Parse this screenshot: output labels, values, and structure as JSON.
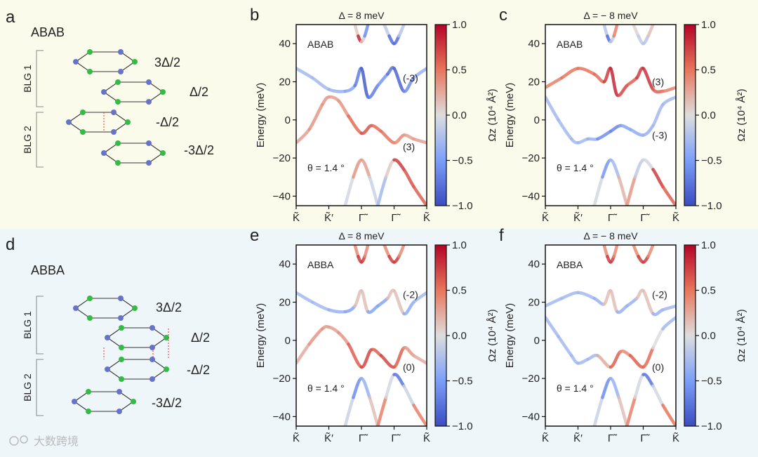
{
  "panels": {
    "a": {
      "letter": "a",
      "stack": "ABAB",
      "layers": [
        "3Δ/2",
        "Δ/2",
        "-Δ/2",
        "-3Δ/2"
      ],
      "blg1": "BLG 1",
      "blg2": "BLG 2"
    },
    "d": {
      "letter": "d",
      "stack": "ABBA",
      "layers": [
        "3Δ/2",
        "Δ/2",
        "-Δ/2",
        "-3Δ/2"
      ],
      "blg1": "BLG 1",
      "blg2": "BLG 2"
    }
  },
  "watermark": "大数跨境",
  "colors": {
    "blue": "#3b4cc0",
    "red": "#b40426",
    "mid": "#dddddd",
    "green": "#33bb44",
    "node_blue": "#6673c8"
  },
  "chart_data": [
    {
      "id": "b",
      "type": "line",
      "letter": "b",
      "title": "Δ = 8 meV",
      "stack": "ABAB",
      "theta": "θ = 1.4 °",
      "ylabel": "Energy (meV)",
      "ylim": [
        -45,
        50
      ],
      "yticks": [
        "40",
        "20",
        "0",
        "−20",
        "−40"
      ],
      "xticks": [
        "K̃",
        "K̃′",
        "Γ̃",
        "Γ̃",
        "K̃"
      ],
      "chern": [
        {
          "text": "(-3)",
          "e": 22
        },
        {
          "text": "(3)",
          "e": -14
        }
      ],
      "colorbar": {
        "label": "Ωz (10⁴ Å²)",
        "ticks": [
          "1.0",
          "0.5",
          "0.0",
          "−0.5",
          "−1.0"
        ],
        "range": [
          -1,
          1
        ]
      },
      "bands": [
        {
          "name": "upper flat",
          "x": [
            0,
            0.5,
            1,
            1.5,
            1.8,
            2,
            2.2,
            2.5,
            2.8,
            3,
            3.3,
            3.6,
            4
          ],
          "y": [
            27,
            22,
            16,
            15,
            18,
            27,
            12,
            18,
            24,
            27,
            15,
            22,
            27
          ],
          "c": [
            -0.3,
            -0.3,
            -0.3,
            -0.4,
            -0.5,
            -0.9,
            -0.9,
            -0.5,
            -0.6,
            -0.9,
            -0.8,
            -0.4,
            -0.3
          ]
        },
        {
          "name": "lower flat",
          "x": [
            0,
            0.4,
            0.8,
            1,
            1.3,
            1.6,
            2,
            2.3,
            2.6,
            3,
            3.3,
            3.6,
            4
          ],
          "y": [
            -12,
            -5,
            8,
            12,
            10,
            2,
            -7,
            -3,
            -6,
            -12,
            -8,
            -10,
            -12
          ],
          "c": [
            0.3,
            0.3,
            0.4,
            0.3,
            0.3,
            0.4,
            0.7,
            0.6,
            0.5,
            0.5,
            0.3,
            0.3,
            0.3
          ]
        },
        {
          "name": "remote up 1",
          "x": [
            1.8,
            1.9,
            2,
            2.1,
            2.2
          ],
          "y": [
            50,
            44,
            41,
            44,
            50
          ],
          "c": [
            -0.6,
            0.8,
            0.9,
            -0.7,
            -0.5
          ]
        },
        {
          "name": "remote up 2",
          "x": [
            2.7,
            2.85,
            3,
            3.15,
            3.3
          ],
          "y": [
            50,
            44,
            40,
            44,
            50
          ],
          "c": [
            0.3,
            -0.6,
            -1,
            -0.6,
            0.2
          ]
        },
        {
          "name": "remote down 1",
          "x": [
            1.5,
            1.75,
            2,
            2.25,
            2.5
          ],
          "y": [
            -45,
            -30,
            -21,
            -30,
            -45
          ],
          "c": [
            0.1,
            -0.2,
            0.9,
            -0.3,
            0.1
          ]
        },
        {
          "name": "remote down 2",
          "x": [
            2.5,
            2.75,
            3,
            3.3,
            3.6,
            4
          ],
          "y": [
            -45,
            -30,
            -21,
            -26,
            -35,
            -45
          ],
          "c": [
            0.1,
            -0.7,
            0.9,
            0.6,
            0.7,
            0.5
          ]
        }
      ]
    },
    {
      "id": "c",
      "type": "line",
      "letter": "c",
      "title": "Δ = − 8 meV",
      "stack": "ABAB",
      "theta": "θ = 1.4 °",
      "ylabel": "Energy (meV)",
      "ylim": [
        -45,
        50
      ],
      "yticks": [
        "40",
        "20",
        "0",
        "−20",
        "−40"
      ],
      "xticks": [
        "K̃",
        "K̃′",
        "Γ̃",
        "Γ̃",
        "K̃"
      ],
      "chern": [
        {
          "text": "(3)",
          "e": 20
        },
        {
          "text": "(-3)",
          "e": -8
        }
      ],
      "colorbar": {
        "label": "Ωz (10⁴ Å²)",
        "ticks": [
          "1.0",
          "0.5",
          "0.0",
          "−0.5",
          "−1.0"
        ],
        "range": [
          -1,
          1
        ]
      },
      "bands": [
        {
          "name": "upper flat",
          "x": [
            0,
            0.5,
            1,
            1.5,
            1.8,
            2,
            2.2,
            2.5,
            2.8,
            3,
            3.3,
            3.6,
            4
          ],
          "y": [
            17,
            22,
            27,
            24,
            20,
            27,
            13,
            18,
            22,
            27,
            16,
            15,
            17
          ],
          "c": [
            0.4,
            0.5,
            0.5,
            0.5,
            0.6,
            0.9,
            0.8,
            0.6,
            0.6,
            0.9,
            0.7,
            0.5,
            0.4
          ]
        },
        {
          "name": "lower flat",
          "x": [
            0,
            0.4,
            0.8,
            1,
            1.3,
            1.6,
            2,
            2.3,
            2.6,
            3,
            3.3,
            3.6,
            4
          ],
          "y": [
            12,
            0,
            -10,
            -12,
            -10,
            -10,
            -6,
            -3,
            -5,
            -8,
            -3,
            8,
            12
          ],
          "c": [
            -0.3,
            -0.3,
            -0.3,
            -0.3,
            -0.3,
            -0.4,
            -0.8,
            -0.5,
            -0.4,
            -0.4,
            -0.3,
            -0.3,
            -0.3
          ]
        },
        {
          "name": "remote up 1",
          "x": [
            1.8,
            1.9,
            2,
            2.1,
            2.2
          ],
          "y": [
            50,
            44,
            41,
            44,
            50
          ],
          "c": [
            0.3,
            -0.7,
            -0.9,
            0.6,
            0.3
          ]
        },
        {
          "name": "remote up 2",
          "x": [
            2.7,
            2.85,
            3,
            3.15,
            3.3
          ],
          "y": [
            50,
            44,
            40,
            44,
            50
          ],
          "c": [
            -0.5,
            0.6,
            -0.9,
            0.5,
            -0.2
          ]
        },
        {
          "name": "remote down 1",
          "x": [
            1.5,
            1.75,
            2,
            2.25,
            2.5
          ],
          "y": [
            -45,
            -30,
            -21,
            -30,
            -45
          ],
          "c": [
            0.1,
            -0.2,
            -0.9,
            0.3,
            0.1
          ]
        },
        {
          "name": "remote down 2",
          "x": [
            2.5,
            2.75,
            3,
            3.3,
            3.6,
            4
          ],
          "y": [
            -45,
            -30,
            -21,
            -26,
            -35,
            -45
          ],
          "c": [
            0.1,
            0.6,
            -0.9,
            0.8,
            0.7,
            0.5
          ]
        }
      ]
    },
    {
      "id": "e",
      "type": "line",
      "letter": "e",
      "title": "Δ = 8 meV",
      "stack": "ABBA",
      "theta": "θ = 1.4 °",
      "ylabel": "Energy (meV)",
      "ylim": [
        -45,
        50
      ],
      "yticks": [
        "40",
        "20",
        "0",
        "−20",
        "−40"
      ],
      "xticks": [
        "K̃",
        "K̃′",
        "Γ̃",
        "Γ̃",
        "K̃"
      ],
      "chern": [
        {
          "text": "(-2)",
          "e": 24
        },
        {
          "text": "(0)",
          "e": -14
        }
      ],
      "colorbar": {
        "label": "Ωz (10⁴ Å²)",
        "ticks": [
          "1.0",
          "0.5",
          "0.0",
          "−0.5",
          "−1.0"
        ],
        "range": [
          -1,
          1
        ]
      },
      "bands": [
        {
          "name": "upper flat",
          "x": [
            0,
            0.5,
            1,
            1.5,
            1.8,
            2,
            2.2,
            2.5,
            2.8,
            3,
            3.3,
            3.6,
            4
          ],
          "y": [
            25,
            20,
            16,
            15,
            18,
            26,
            15,
            18,
            22,
            26,
            14,
            20,
            25
          ],
          "c": [
            -0.3,
            -0.3,
            -0.3,
            -0.4,
            -0.5,
            0.8,
            -0.5,
            -0.4,
            -0.5,
            0.8,
            -0.5,
            -0.3,
            -0.3
          ]
        },
        {
          "name": "lower flat",
          "x": [
            0,
            0.4,
            0.8,
            1,
            1.3,
            1.6,
            2,
            2.3,
            2.6,
            3,
            3.3,
            3.6,
            4
          ],
          "y": [
            -12,
            -2,
            6,
            7,
            4,
            -2,
            -14,
            -5,
            -8,
            -14,
            -4,
            -8,
            -12
          ],
          "c": [
            0.2,
            0.3,
            0.4,
            0.3,
            0.3,
            0.4,
            0.8,
            0.6,
            0.6,
            0.8,
            0.4,
            0.3,
            0.2
          ]
        },
        {
          "name": "remote up 1",
          "x": [
            1.8,
            1.9,
            2,
            2.1,
            2.2
          ],
          "y": [
            50,
            44,
            41,
            44,
            50
          ],
          "c": [
            0.2,
            0.6,
            0.9,
            0.6,
            0.2
          ]
        },
        {
          "name": "remote up 2",
          "x": [
            2.7,
            2.85,
            3,
            3.15,
            3.3
          ],
          "y": [
            50,
            44,
            41,
            44,
            50
          ],
          "c": [
            0.2,
            0.6,
            0.9,
            0.6,
            0.2
          ]
        },
        {
          "name": "remote down 1",
          "x": [
            1.5,
            1.75,
            2,
            2.25,
            2.5
          ],
          "y": [
            -45,
            -30,
            -20,
            -30,
            -45
          ],
          "c": [
            0.1,
            -0.3,
            -0.9,
            0.2,
            0.1
          ]
        },
        {
          "name": "remote down 2",
          "x": [
            2.5,
            2.75,
            3,
            3.3,
            3.6,
            4
          ],
          "y": [
            -45,
            -30,
            -18,
            -24,
            -34,
            -45
          ],
          "c": [
            0.1,
            0.8,
            -0.9,
            -0.6,
            0.4,
            0.5
          ]
        }
      ]
    },
    {
      "id": "f",
      "type": "line",
      "letter": "f",
      "title": "Δ = − 8 meV",
      "stack": "ABBA",
      "theta": "θ = 1.4 °",
      "ylabel": "Energy (meV)",
      "ylim": [
        -45,
        50
      ],
      "yticks": [
        "40",
        "20",
        "0",
        "−20",
        "−40"
      ],
      "xticks": [
        "K̃",
        "K̃′",
        "Γ̃",
        "Γ̃",
        "K̃"
      ],
      "chern": [
        {
          "text": "(-2)",
          "e": 24
        },
        {
          "text": "(0)",
          "e": -14
        }
      ],
      "colorbar": {
        "label": "Ωz (10⁴ Å²)",
        "ticks": [
          "1.0",
          "0.5",
          "0.0",
          "−0.5",
          "−1.0"
        ],
        "range": [
          -1,
          1
        ]
      },
      "bands": [
        {
          "name": "upper flat",
          "x": [
            0,
            0.5,
            1,
            1.5,
            1.8,
            2,
            2.2,
            2.5,
            2.8,
            3,
            3.3,
            3.6,
            4
          ],
          "y": [
            18,
            22,
            25,
            22,
            19,
            26,
            15,
            18,
            22,
            26,
            14,
            16,
            18
          ],
          "c": [
            -0.3,
            -0.3,
            -0.3,
            -0.3,
            -0.4,
            0.7,
            -0.4,
            -0.3,
            -0.4,
            0.7,
            -0.4,
            -0.3,
            -0.3
          ]
        },
        {
          "name": "lower flat",
          "x": [
            0,
            0.4,
            0.8,
            1,
            1.3,
            1.6,
            2,
            2.3,
            2.6,
            3,
            3.3,
            3.6,
            4
          ],
          "y": [
            12,
            2,
            -8,
            -12,
            -10,
            -8,
            -14,
            -6,
            -8,
            -14,
            -4,
            6,
            12
          ],
          "c": [
            -0.3,
            -0.3,
            -0.3,
            -0.3,
            -0.3,
            -0.3,
            0.8,
            0.4,
            0.4,
            0.8,
            0.3,
            -0.3,
            -0.3
          ]
        },
        {
          "name": "remote up 1",
          "x": [
            1.8,
            1.9,
            2,
            2.1,
            2.2
          ],
          "y": [
            50,
            44,
            41,
            44,
            50
          ],
          "c": [
            0.2,
            0.6,
            0.9,
            0.6,
            0.2
          ]
        },
        {
          "name": "remote up 2",
          "x": [
            2.7,
            2.85,
            3,
            3.15,
            3.3
          ],
          "y": [
            50,
            44,
            41,
            44,
            50
          ],
          "c": [
            0.2,
            0.6,
            0.9,
            0.6,
            0.2
          ]
        },
        {
          "name": "remote down 1",
          "x": [
            1.5,
            1.75,
            2,
            2.25,
            2.5
          ],
          "y": [
            -45,
            -30,
            -20,
            -30,
            -45
          ],
          "c": [
            0.1,
            -0.3,
            -0.9,
            0.2,
            0.1
          ]
        },
        {
          "name": "remote down 2",
          "x": [
            2.5,
            2.75,
            3,
            3.3,
            3.6,
            4
          ],
          "y": [
            -45,
            -30,
            -18,
            -24,
            -34,
            -45
          ],
          "c": [
            0.1,
            0.8,
            -0.9,
            -0.6,
            0.5,
            0.5
          ]
        }
      ]
    }
  ]
}
